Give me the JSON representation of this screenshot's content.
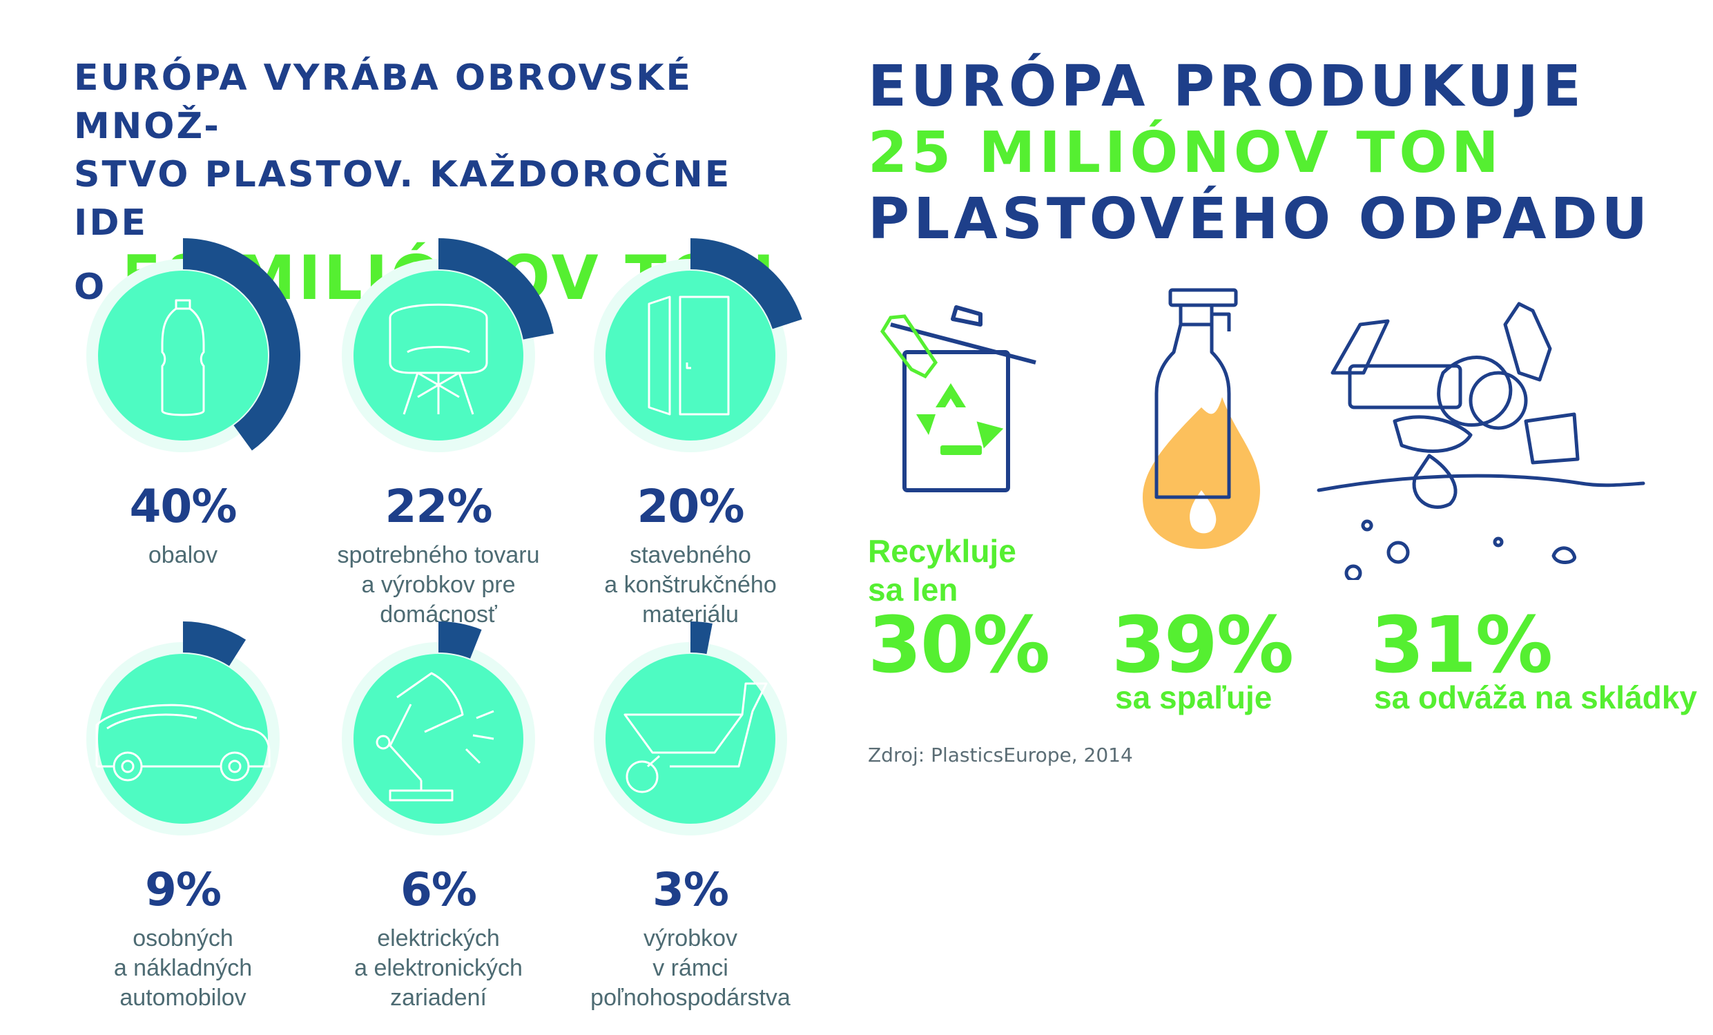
{
  "left": {
    "title_line1": "EURÓPA VYRÁBA OBROVSKÉ MNOŽ-",
    "title_line2": "STVO PLASTOV. KAŽDOROČNE IDE",
    "title_prefix": "O",
    "title_highlight": "58 MILIÓNOV TON"
  },
  "right": {
    "title_line1": "EURÓPA PRODUKUJE",
    "title_line2": "25 MILIÓNOV TON",
    "title_line3": "PLASTOVÉHO ODPADU",
    "source": "Zdroj: PlasticsEurope, 2014"
  },
  "colors": {
    "navy": "#1e3f8a",
    "ring_dark": "#1a4f8c",
    "ring_light": "#e8fdf6",
    "disc": "#4efbc2",
    "green": "#55ef31",
    "flame": "#fcc05c"
  },
  "chart_data": [
    {
      "type": "pie",
      "categories": [
        "obalov",
        "spotrebného tovaru a výrobkov pre domácnosť",
        "stavebného a konštrukčného materiálu",
        "osobných a nákladných automobilov",
        "elektrických a elektronických zariadení",
        "výrobkov v rámci poľnohospodárstva"
      ],
      "values": [
        40,
        22,
        20,
        9,
        6,
        3
      ],
      "value_labels": [
        "40%",
        "22%",
        "20%",
        "9%",
        "6%",
        "3%"
      ],
      "label_lines": [
        [
          "obalov"
        ],
        [
          "spotrebného tovaru",
          "a výrobkov pre",
          "domácnosť"
        ],
        [
          "stavebného",
          "a konštrukčného",
          "materiálu"
        ],
        [
          "osobných",
          "a nákladných",
          "automobilov"
        ],
        [
          "elektrických",
          "a elektronických",
          "zariadení"
        ],
        [
          "výrobkov",
          "v rámci",
          "poľnohospodárstva"
        ]
      ],
      "icons": [
        "bottle-icon",
        "chair-icon",
        "door-icon",
        "car-icon",
        "lamp-icon",
        "wheelbarrow-icon"
      ]
    },
    {
      "type": "pie",
      "categories": [
        "Recykluje sa len",
        "sa spaľuje",
        "sa odváža na skládky"
      ],
      "values": [
        30,
        39,
        31
      ],
      "value_labels": [
        "30%",
        "39%",
        "31%"
      ],
      "label_lines": [
        [
          "Recykluje",
          "sa len"
        ],
        [
          "sa spaľuje"
        ],
        [
          "sa odváža na skládky"
        ]
      ],
      "icons": [
        "recycle-bin-icon",
        "burning-bottle-icon",
        "landfill-icon"
      ]
    }
  ]
}
